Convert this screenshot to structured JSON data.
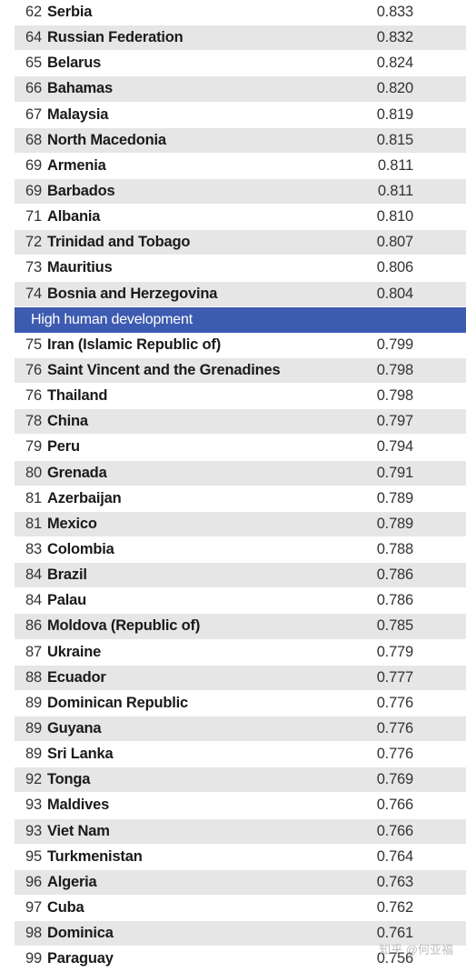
{
  "table": {
    "rows_before": [
      {
        "rank": "62",
        "country": "Serbia",
        "value": "0.833",
        "shade": false
      },
      {
        "rank": "64",
        "country": "Russian Federation",
        "value": "0.832",
        "shade": true
      },
      {
        "rank": "65",
        "country": "Belarus",
        "value": "0.824",
        "shade": false
      },
      {
        "rank": "66",
        "country": "Bahamas",
        "value": "0.820",
        "shade": true
      },
      {
        "rank": "67",
        "country": "Malaysia",
        "value": "0.819",
        "shade": false
      },
      {
        "rank": "68",
        "country": "North Macedonia",
        "value": "0.815",
        "shade": true
      },
      {
        "rank": "69",
        "country": "Armenia",
        "value": "0.811",
        "shade": false
      },
      {
        "rank": "69",
        "country": "Barbados",
        "value": "0.811",
        "shade": true
      },
      {
        "rank": "71",
        "country": "Albania",
        "value": "0.810",
        "shade": false
      },
      {
        "rank": "72",
        "country": "Trinidad and Tobago",
        "value": "0.807",
        "shade": true
      },
      {
        "rank": "73",
        "country": "Mauritius",
        "value": "0.806",
        "shade": false
      },
      {
        "rank": "74",
        "country": "Bosnia and Herzegovina",
        "value": "0.804",
        "shade": true
      }
    ],
    "section_title": "High human development",
    "rows_after": [
      {
        "rank": "75",
        "country": "Iran (Islamic Republic of)",
        "value": "0.799",
        "shade": false
      },
      {
        "rank": "76",
        "country": "Saint Vincent and the Grenadines",
        "value": "0.798",
        "shade": true
      },
      {
        "rank": "76",
        "country": "Thailand",
        "value": "0.798",
        "shade": false
      },
      {
        "rank": "78",
        "country": "China",
        "value": "0.797",
        "shade": true
      },
      {
        "rank": "79",
        "country": "Peru",
        "value": "0.794",
        "shade": false
      },
      {
        "rank": "80",
        "country": "Grenada",
        "value": "0.791",
        "shade": true
      },
      {
        "rank": "81",
        "country": "Azerbaijan",
        "value": "0.789",
        "shade": false
      },
      {
        "rank": "81",
        "country": "Mexico",
        "value": "0.789",
        "shade": true
      },
      {
        "rank": "83",
        "country": "Colombia",
        "value": "0.788",
        "shade": false
      },
      {
        "rank": "84",
        "country": "Brazil",
        "value": "0.786",
        "shade": true
      },
      {
        "rank": "84",
        "country": "Palau",
        "value": "0.786",
        "shade": false
      },
      {
        "rank": "86",
        "country": "Moldova (Republic of)",
        "value": "0.785",
        "shade": true
      },
      {
        "rank": "87",
        "country": "Ukraine",
        "value": "0.779",
        "shade": false
      },
      {
        "rank": "88",
        "country": "Ecuador",
        "value": "0.777",
        "shade": true
      },
      {
        "rank": "89",
        "country": "Dominican Republic",
        "value": "0.776",
        "shade": false
      },
      {
        "rank": "89",
        "country": "Guyana",
        "value": "0.776",
        "shade": true
      },
      {
        "rank": "89",
        "country": "Sri Lanka",
        "value": "0.776",
        "shade": false
      },
      {
        "rank": "92",
        "country": "Tonga",
        "value": "0.769",
        "shade": true
      },
      {
        "rank": "93",
        "country": "Maldives",
        "value": "0.766",
        "shade": false
      },
      {
        "rank": "93",
        "country": "Viet Nam",
        "value": "0.766",
        "shade": true
      },
      {
        "rank": "95",
        "country": "Turkmenistan",
        "value": "0.764",
        "shade": false
      },
      {
        "rank": "96",
        "country": "Algeria",
        "value": "0.763",
        "shade": true
      },
      {
        "rank": "97",
        "country": "Cuba",
        "value": "0.762",
        "shade": false
      },
      {
        "rank": "98",
        "country": "Dominica",
        "value": "0.761",
        "shade": true
      },
      {
        "rank": "99",
        "country": "Paraguay",
        "value": "0.756",
        "shade": false
      }
    ]
  },
  "watermark": "知乎 @何亚福",
  "colors": {
    "section_bg": "#3d5bb0",
    "row_shade": "#e6e6e7"
  }
}
